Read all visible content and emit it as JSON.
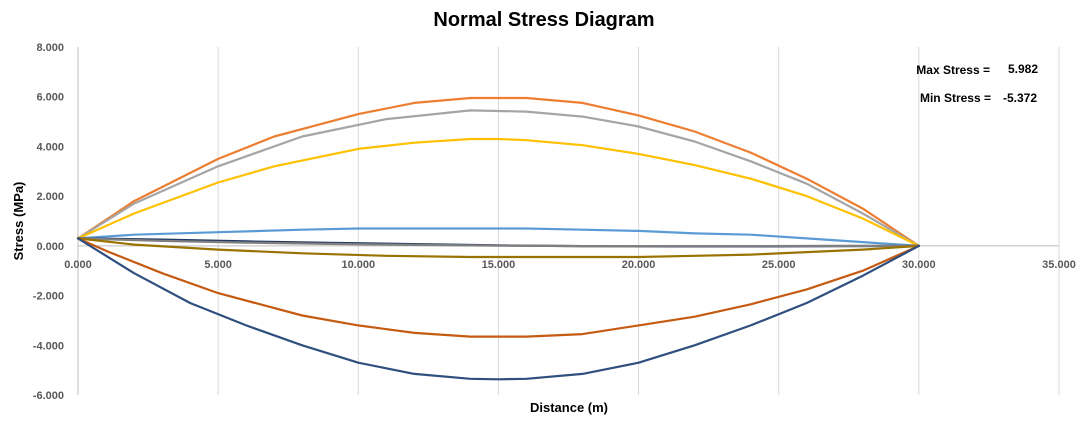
{
  "chart_data": {
    "type": "line",
    "title": "Normal Stress Diagram",
    "xlabel": "Distance (m)",
    "ylabel": "Stress (MPa)",
    "xlim": [
      0,
      35
    ],
    "ylim": [
      -6,
      8
    ],
    "x_ticks": [
      0,
      5,
      10,
      15,
      20,
      25,
      30,
      35
    ],
    "y_ticks": [
      -6,
      -4,
      -2,
      0,
      2,
      4,
      6,
      8
    ],
    "x_tick_labels": [
      "0.000",
      "5.000",
      "10.000",
      "15.000",
      "20.000",
      "25.000",
      "30.000",
      "35.000"
    ],
    "y_tick_labels": [
      "-6.000",
      "-4.000",
      "-2.000",
      "0.000",
      "2.000",
      "4.000",
      "6.000",
      "8.000"
    ],
    "grid": "vertical",
    "legend": "none",
    "annotations": [
      {
        "label": "Max Stress =",
        "value": "5.982"
      },
      {
        "label": "Min Stress =",
        "value": "-5.372"
      }
    ],
    "series": [
      {
        "color": "#ED7D31",
        "x": [
          0,
          2,
          5,
          7,
          10,
          12,
          14,
          16,
          18,
          20,
          22,
          24,
          26,
          28,
          30
        ],
        "values": [
          0.3,
          1.8,
          3.5,
          4.4,
          5.3,
          5.75,
          5.95,
          5.95,
          5.75,
          5.25,
          4.6,
          3.75,
          2.7,
          1.5,
          0.0
        ]
      },
      {
        "color": "#A5A5A5",
        "x": [
          0,
          2,
          5,
          8,
          11,
          14,
          16,
          18,
          20,
          22,
          24,
          26,
          28,
          30
        ],
        "values": [
          0.3,
          1.7,
          3.2,
          4.4,
          5.1,
          5.45,
          5.4,
          5.2,
          4.8,
          4.2,
          3.4,
          2.5,
          1.3,
          0.0
        ]
      },
      {
        "color": "#FFC000",
        "x": [
          0,
          2,
          5,
          7,
          10,
          12,
          14,
          15,
          16,
          18,
          20,
          22,
          24,
          26,
          28,
          30
        ],
        "values": [
          0.3,
          1.3,
          2.55,
          3.2,
          3.9,
          4.15,
          4.3,
          4.3,
          4.25,
          4.05,
          3.7,
          3.25,
          2.7,
          2.0,
          1.1,
          0.0
        ]
      },
      {
        "color": "#5B9BD5",
        "x": [
          0,
          2,
          5,
          8,
          10,
          12,
          14,
          16,
          18,
          20,
          22,
          24,
          26,
          28,
          30
        ],
        "values": [
          0.3,
          0.45,
          0.55,
          0.65,
          0.7,
          0.7,
          0.7,
          0.7,
          0.65,
          0.6,
          0.5,
          0.45,
          0.3,
          0.15,
          0.0
        ]
      },
      {
        "color": "#203864",
        "x": [
          0,
          3,
          6,
          9,
          12,
          15,
          18,
          21,
          24,
          27,
          30
        ],
        "values": [
          0.3,
          0.25,
          0.18,
          0.12,
          0.07,
          0.02,
          -0.01,
          -0.02,
          -0.02,
          -0.01,
          0.0
        ]
      },
      {
        "color": "#7F7F7F",
        "x": [
          0,
          3,
          6,
          9,
          12,
          15,
          18,
          21,
          24,
          27,
          30
        ],
        "values": [
          0.3,
          0.2,
          0.13,
          0.08,
          0.04,
          0.01,
          -0.01,
          -0.01,
          -0.01,
          0.0,
          0.0
        ]
      },
      {
        "color": "#997300",
        "x": [
          0,
          2,
          5,
          8,
          11,
          14,
          16,
          18,
          20,
          22,
          24,
          26,
          28,
          30
        ],
        "values": [
          0.3,
          0.05,
          -0.15,
          -0.3,
          -0.4,
          -0.45,
          -0.45,
          -0.45,
          -0.45,
          -0.4,
          -0.35,
          -0.25,
          -0.15,
          0.0
        ]
      },
      {
        "color": "#C55A11",
        "x": [
          0,
          1,
          3,
          5,
          8,
          10,
          12,
          14,
          16,
          18,
          20,
          22,
          24,
          26,
          28,
          30
        ],
        "values": [
          0.3,
          -0.2,
          -1.1,
          -1.9,
          -2.8,
          -3.2,
          -3.5,
          -3.65,
          -3.65,
          -3.55,
          -3.2,
          -2.85,
          -2.35,
          -1.75,
          -1.0,
          0.0
        ]
      },
      {
        "color": "#2F4F7F",
        "x": [
          0,
          2,
          4,
          6,
          8,
          10,
          12,
          14,
          15,
          16,
          18,
          20,
          22,
          24,
          26,
          28,
          30
        ],
        "values": [
          0.3,
          -1.1,
          -2.3,
          -3.2,
          -4.0,
          -4.7,
          -5.15,
          -5.35,
          -5.37,
          -5.35,
          -5.15,
          -4.7,
          -4.0,
          -3.2,
          -2.3,
          -1.2,
          0.0
        ]
      }
    ]
  }
}
